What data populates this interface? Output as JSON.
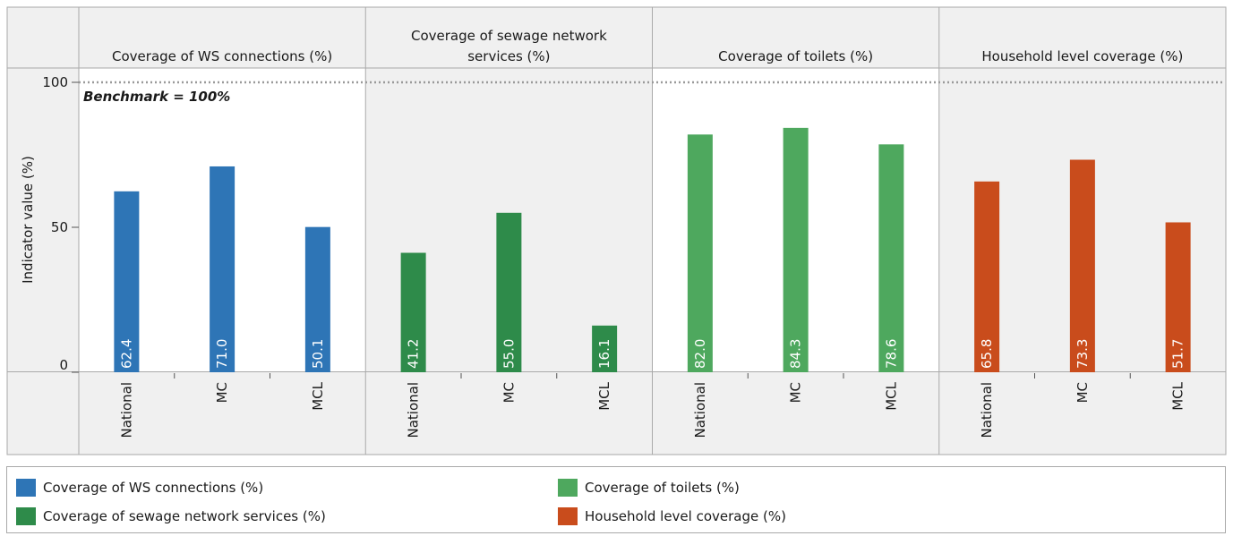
{
  "chart_data": {
    "type": "bar",
    "ylabel": "Indicator value (%)",
    "ylim": [
      0,
      100
    ],
    "yticks": [
      "0",
      "50",
      "100"
    ],
    "categories": [
      "National",
      "MC",
      "MCL"
    ],
    "benchmark": {
      "value": 100,
      "label": "Benchmark = 100%"
    },
    "panels": [
      {
        "name": "Coverage of WS connections (%)",
        "header": [
          "Coverage of WS connections (%)"
        ],
        "color": "#2e75b6",
        "highlight": true,
        "values": [
          62.4,
          71.0,
          50.1
        ]
      },
      {
        "name": "Coverage of sewage network services (%)",
        "header": [
          "Coverage of sewage network",
          "services (%)"
        ],
        "color": "#2e8b4a",
        "highlight": false,
        "values": [
          41.2,
          55.0,
          16.1
        ]
      },
      {
        "name": "Coverage of toilets (%)",
        "header": [
          "Coverage of toilets (%)"
        ],
        "color": "#4ea85e",
        "highlight": true,
        "values": [
          82.0,
          84.3,
          78.6
        ]
      },
      {
        "name": "Household level coverage (%)",
        "header": [
          "Household level coverage (%)"
        ],
        "color": "#c94c1c",
        "highlight": false,
        "values": [
          65.8,
          73.3,
          51.7
        ]
      }
    ],
    "value_labels": [
      [
        "62.4",
        "71.0",
        "50.1"
      ],
      [
        "41.2",
        "55.0",
        "16.1"
      ],
      [
        "82.0",
        "84.3",
        "78.6"
      ],
      [
        "65.8",
        "73.3",
        "51.7"
      ]
    ]
  },
  "legend": {
    "items": [
      {
        "label": "Coverage of WS connections (%)",
        "color": "#2e75b6"
      },
      {
        "label": "Coverage of sewage network services (%)",
        "color": "#2e8b4a"
      },
      {
        "label": "Coverage of toilets (%)",
        "color": "#4ea85e"
      },
      {
        "label": "Household level coverage (%)",
        "color": "#c94c1c"
      }
    ]
  }
}
